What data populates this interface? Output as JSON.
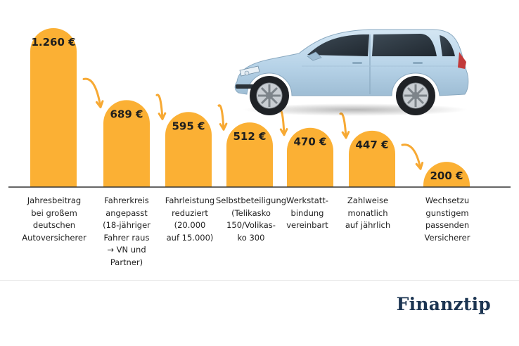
{
  "chart_data": {
    "type": "bar",
    "categories": [
      "Jahresbeitrag\nbei großem\ndeutschen\nAutoversicherer",
      "Fahrerkreis\nangepasst\n(18-jähriger\nFahrer raus\n→ VN und\nPartner)",
      "Fahrleistung\nreduziert\n(20.000\nauf 15.000)",
      "Selbstbeteiligung\n(Telikasko\n150/Volikas-\nko 300",
      "Werkstatt-\nbindung\nvereinbart",
      "Zahlweise\nmonatlich\nauf jährlich",
      "Wechsetzu\ngunstigem\npassenden\nVersicherer"
    ],
    "values": [
      1260,
      689,
      595,
      512,
      470,
      447,
      200
    ],
    "value_labels": [
      "1.260 €",
      "689 €",
      "595 €",
      "512 €",
      "470 €",
      "447 €",
      "200 €"
    ],
    "title": "",
    "xlabel": "",
    "ylabel": "",
    "ylim": [
      0,
      1300
    ],
    "grid": false,
    "legend": "none"
  },
  "colors": {
    "bar": "#fbb034",
    "arrow": "#f7a933",
    "baseline": "#333333",
    "brand": "#1c3552"
  },
  "branding": {
    "name": "Finanztip"
  },
  "icons": [
    "car-illustration",
    "curved-arrow-icon"
  ]
}
